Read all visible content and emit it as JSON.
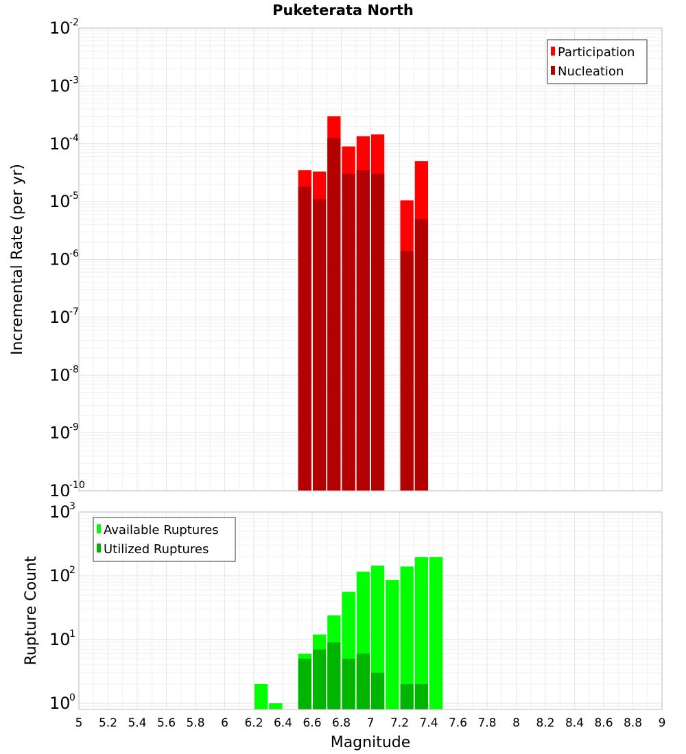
{
  "chart_data": [
    {
      "type": "bar",
      "title": "Puketerata North",
      "xlabel": "",
      "ylabel": "Incremental Rate (per yr)",
      "yscale": "log",
      "ylim": [
        1e-10,
        0.01
      ],
      "xlim": [
        5,
        9
      ],
      "bar_width": 0.1,
      "grid": true,
      "legend_position": "top-right",
      "ytick_labels": [
        {
          "base": "10",
          "exp": "-10",
          "value": 1e-10
        },
        {
          "base": "10",
          "exp": "-9",
          "value": 1e-09
        },
        {
          "base": "10",
          "exp": "-8",
          "value": 1e-08
        },
        {
          "base": "10",
          "exp": "-7",
          "value": 1e-07
        },
        {
          "base": "10",
          "exp": "-6",
          "value": 1e-06
        },
        {
          "base": "10",
          "exp": "-5",
          "value": 1e-05
        },
        {
          "base": "10",
          "exp": "-4",
          "value": 0.0001
        },
        {
          "base": "10",
          "exp": "-3",
          "value": 0.001
        },
        {
          "base": "10",
          "exp": "-2",
          "value": 0.01
        }
      ],
      "series": [
        {
          "name": "Participation",
          "color": "#ff0000",
          "x": [
            6.55,
            6.65,
            6.75,
            6.85,
            6.95,
            7.05,
            7.25,
            7.35
          ],
          "values": [
            3.5e-05,
            3.3e-05,
            0.0003,
            9e-05,
            0.000135,
            0.000145,
            1.05e-05,
            5e-05
          ]
        },
        {
          "name": "Nucleation",
          "color": "#b30000",
          "x": [
            6.55,
            6.65,
            6.75,
            6.85,
            6.95,
            7.05,
            7.25,
            7.35
          ],
          "values": [
            1.8e-05,
            1.1e-05,
            0.000125,
            3e-05,
            3.5e-05,
            3e-05,
            1.4e-06,
            5e-06
          ]
        }
      ]
    },
    {
      "type": "bar",
      "xlabel": "Magnitude",
      "ylabel": "Rupture Count",
      "yscale": "log",
      "ylim": [
        0.8,
        1000
      ],
      "xlim": [
        5,
        9
      ],
      "bar_width": 0.1,
      "grid": true,
      "legend_position": "top-left",
      "xtick_labels": [
        "5",
        "5.2",
        "5.4",
        "5.6",
        "5.8",
        "6",
        "6.2",
        "6.4",
        "6.6",
        "6.8",
        "7",
        "7.2",
        "7.4",
        "7.6",
        "7.8",
        "8",
        "8.2",
        "8.4",
        "8.6",
        "8.8",
        "9"
      ],
      "ytick_labels": [
        {
          "base": "10",
          "exp": "0",
          "value": 1
        },
        {
          "base": "10",
          "exp": "1",
          "value": 10
        },
        {
          "base": "10",
          "exp": "2",
          "value": 100
        },
        {
          "base": "10",
          "exp": "3",
          "value": 1000
        }
      ],
      "series": [
        {
          "name": "Available Ruptures",
          "color": "#00ff00",
          "x": [
            6.25,
            6.35,
            6.55,
            6.65,
            6.75,
            6.85,
            6.95,
            7.05,
            7.15,
            7.25,
            7.35,
            7.45
          ],
          "values": [
            2,
            1,
            6,
            12,
            24,
            56,
            116,
            144,
            86,
            140,
            196,
            196
          ]
        },
        {
          "name": "Utilized Ruptures",
          "color": "#00b400",
          "x": [
            6.55,
            6.65,
            6.75,
            6.85,
            6.95,
            7.05,
            7.25,
            7.35
          ],
          "values": [
            5,
            7,
            9,
            5,
            6,
            3,
            2,
            2
          ]
        }
      ]
    }
  ]
}
